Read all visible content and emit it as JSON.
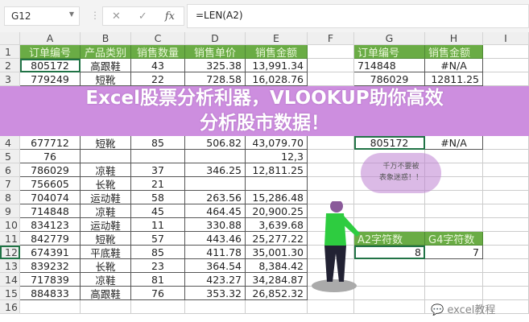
{
  "formula_bar": {
    "name_box": "G12",
    "cancel_icon": "✕",
    "enter_icon": "✓",
    "fx_label": "fx",
    "formula": "=LEN(A2)"
  },
  "columns": [
    "A",
    "B",
    "C",
    "D",
    "E",
    "F",
    "G",
    "H",
    "I"
  ],
  "rows": [
    "1",
    "2",
    "3",
    "4",
    "5",
    "6",
    "7",
    "8",
    "9",
    "10",
    "11",
    "12",
    "13",
    "14",
    "15",
    "16"
  ],
  "main_table": {
    "headers": [
      "订单编号",
      "产品类别",
      "销售数量",
      "销售单价",
      "销售金额"
    ],
    "data": [
      [
        "805172",
        "高跟鞋",
        "43",
        "325.38",
        "13,991.34"
      ],
      [
        "779249",
        "短靴",
        "22",
        "728.58",
        "16,028.76"
      ],
      [
        "677712",
        "短靴",
        "85",
        "506.82",
        "43,079.70"
      ],
      [
        "76",
        "",
        "",
        "",
        "12,3"
      ],
      [
        "786029",
        "凉鞋",
        "37",
        "346.25",
        "12,811.25"
      ],
      [
        "756605",
        "长靴",
        "21",
        "",
        ""
      ],
      [
        "704074",
        "运动鞋",
        "58",
        "263.56",
        "15,286.48"
      ],
      [
        "714848",
        "凉鞋",
        "45",
        "464.45",
        "20,900.25"
      ],
      [
        "834123",
        "运动鞋",
        "11",
        "330.88",
        "3,639.68"
      ],
      [
        "842779",
        "短靴",
        "57",
        "443.46",
        "25,277.22"
      ],
      [
        "674391",
        "平底鞋",
        "85",
        "411.78",
        "35,001.30"
      ],
      [
        "839232",
        "长靴",
        "23",
        "364.54",
        "8,384.42"
      ],
      [
        "717839",
        "凉鞋",
        "81",
        "423.27",
        "34,284.87"
      ],
      [
        "884833",
        "高跟鞋",
        "76",
        "353.32",
        "26,852.32"
      ]
    ]
  },
  "lookup_table": {
    "headers": [
      "订单编号",
      "销售金额"
    ],
    "data": [
      [
        "714848",
        "#N/A"
      ],
      [
        "786029",
        "12811.25"
      ],
      [
        "805172",
        "#N/A"
      ]
    ]
  },
  "len_table": {
    "headers": [
      "A2字符数",
      "G4字符数"
    ],
    "values": [
      "8",
      "7"
    ]
  },
  "banner": {
    "line1": "Excel股票分析利器，VLOOKUP助你高效",
    "line2": "分析股市数据！",
    "color": "#c882dc"
  },
  "cloud": {
    "line1": "千万不要被",
    "line2": "表象迷惑！！"
  },
  "watermark": "excel教程",
  "colors": {
    "header_green": "#6aac45",
    "selection": "#217346"
  }
}
